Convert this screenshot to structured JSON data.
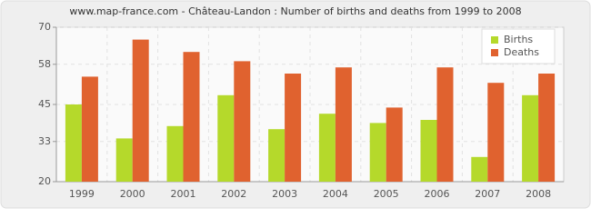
{
  "chart_data": {
    "type": "bar",
    "title": "www.map-france.com - Château-Landon : Number of births and deaths from 1999 to 2008",
    "categories": [
      "1999",
      "2000",
      "2001",
      "2002",
      "2003",
      "2004",
      "2005",
      "2006",
      "2007",
      "2008"
    ],
    "series": [
      {
        "name": "Births",
        "color": "#b5d92b",
        "values": [
          45,
          34,
          38,
          48,
          37,
          42,
          39,
          40,
          28,
          48
        ]
      },
      {
        "name": "Deaths",
        "color": "#e0622f",
        "values": [
          54,
          66,
          62,
          59,
          55,
          57,
          44,
          57,
          52,
          55
        ]
      }
    ],
    "ylim": [
      20,
      70
    ],
    "yticks": [
      20,
      33,
      45,
      58,
      70
    ],
    "grid": true,
    "legend": "top-right"
  }
}
